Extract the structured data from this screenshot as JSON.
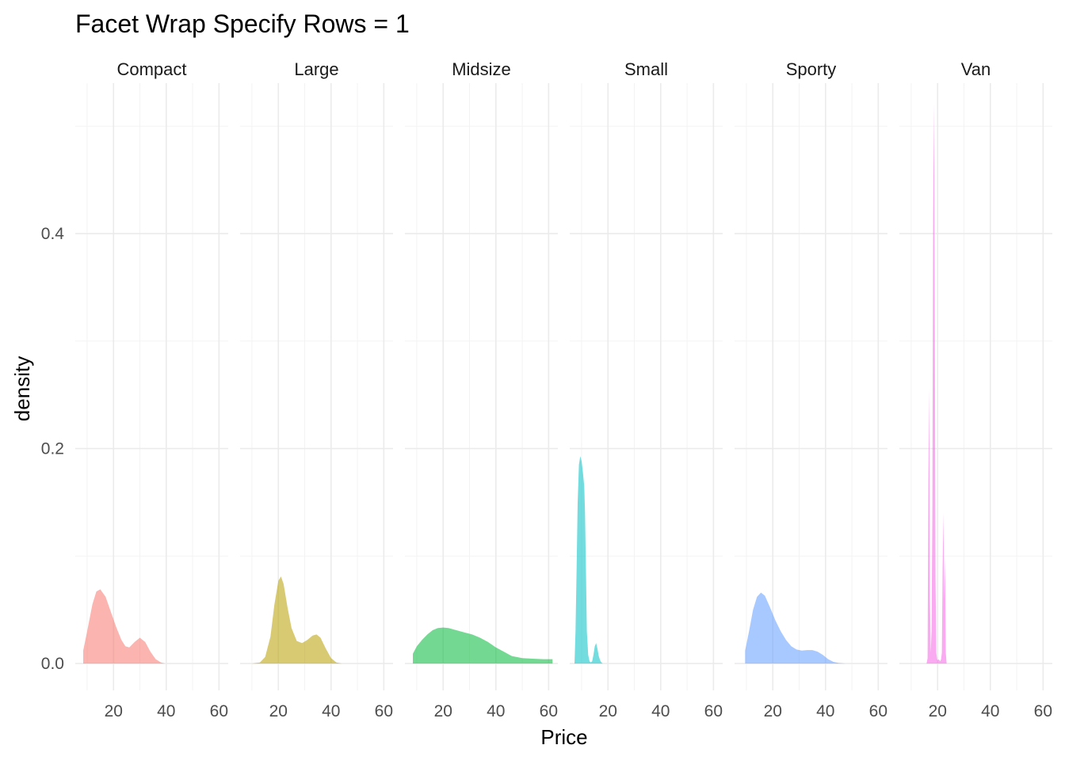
{
  "chart_data": {
    "type": "area",
    "title": "Facet Wrap Specify Rows = 1",
    "xlabel": "Price",
    "ylabel": "density",
    "xlim": [
      5.5,
      63.5
    ],
    "ylim": [
      -0.025,
      0.54
    ],
    "x_ticks": [
      20,
      40,
      60
    ],
    "x_tick_labels": [
      "20",
      "40",
      "60"
    ],
    "y_ticks": [
      0.0,
      0.2,
      0.4
    ],
    "y_tick_labels": [
      "0.0",
      "0.2",
      "0.4"
    ],
    "grid": true,
    "legend": "none",
    "facets": [
      {
        "name": "Compact",
        "color": "#F8766D",
        "x": [
          8.5,
          10,
          12,
          13.5,
          15,
          17,
          19,
          21,
          23,
          24.5,
          26,
          28,
          30,
          32,
          34,
          36,
          38,
          39.5
        ],
        "y": [
          0.012,
          0.03,
          0.055,
          0.067,
          0.069,
          0.062,
          0.048,
          0.034,
          0.022,
          0.016,
          0.015,
          0.02,
          0.024,
          0.02,
          0.011,
          0.004,
          0.001,
          0.0
        ]
      },
      {
        "name": "Large",
        "color": "#B79F00",
        "x": [
          10,
          13,
          15,
          17,
          18.5,
          20,
          21,
          22,
          23.5,
          25,
          27,
          29,
          31,
          33,
          34.5,
          36,
          38,
          40,
          42,
          44
        ],
        "y": [
          0.0,
          0.001,
          0.006,
          0.025,
          0.055,
          0.077,
          0.081,
          0.074,
          0.052,
          0.033,
          0.021,
          0.019,
          0.022,
          0.026,
          0.027,
          0.024,
          0.014,
          0.005,
          0.001,
          0.0
        ]
      },
      {
        "name": "Midsize",
        "color": "#00BA38",
        "x": [
          8.5,
          10,
          12,
          14,
          16,
          18,
          20,
          22,
          25,
          28,
          31,
          34,
          37,
          40,
          43,
          46,
          50,
          54,
          58,
          61.5
        ],
        "y": [
          0.009,
          0.016,
          0.022,
          0.027,
          0.031,
          0.033,
          0.0335,
          0.033,
          0.031,
          0.029,
          0.027,
          0.024,
          0.02,
          0.015,
          0.011,
          0.007,
          0.005,
          0.0045,
          0.004,
          0.004
        ]
      },
      {
        "name": "Small",
        "color": "#00BFC4",
        "x": [
          7.3,
          7.7,
          8.1,
          8.5,
          9.0,
          9.5,
          10.0,
          10.5,
          11.0,
          11.3,
          11.7,
          12.0,
          12.5,
          13.0,
          13.5,
          14.0,
          14.5,
          15.0,
          15.5,
          16.0,
          16.5,
          17.0,
          17.5,
          18.0,
          18.5
        ],
        "y": [
          0.0,
          0.03,
          0.09,
          0.15,
          0.185,
          0.193,
          0.188,
          0.178,
          0.165,
          0.14,
          0.08,
          0.03,
          0.008,
          0.002,
          0.001,
          0.002,
          0.008,
          0.016,
          0.019,
          0.014,
          0.007,
          0.003,
          0.001,
          0.0,
          0.0
        ]
      },
      {
        "name": "Sporty",
        "color": "#619CFF",
        "x": [
          9.5,
          11,
          12.5,
          14,
          15.5,
          17,
          19,
          21,
          23,
          25,
          27,
          29,
          31,
          33,
          35,
          37,
          39,
          41,
          43,
          45,
          47.5
        ],
        "y": [
          0.012,
          0.03,
          0.05,
          0.062,
          0.066,
          0.063,
          0.052,
          0.04,
          0.03,
          0.022,
          0.016,
          0.013,
          0.012,
          0.0125,
          0.0125,
          0.011,
          0.008,
          0.004,
          0.0015,
          0.0005,
          0.0
        ]
      },
      {
        "name": "Van",
        "color": "#F564E3",
        "x": [
          15.8,
          16.2,
          16.5,
          16.8,
          17.1,
          17.4,
          17.7,
          18.0,
          18.3,
          18.6,
          18.9,
          19.2,
          19.5,
          19.8,
          20.1,
          20.4,
          20.7,
          21.0,
          21.3,
          21.6,
          21.9,
          22.2,
          22.5,
          22.8,
          23.1,
          23.4
        ],
        "y": [
          0.0,
          0.005,
          0.17,
          0.255,
          0.06,
          0.01,
          0.03,
          0.14,
          0.42,
          0.52,
          0.35,
          0.08,
          0.01,
          0.004,
          0.003,
          0.004,
          0.003,
          0.002,
          0.004,
          0.01,
          0.09,
          0.14,
          0.06,
          0.098,
          0.01,
          0.0
        ]
      }
    ]
  }
}
